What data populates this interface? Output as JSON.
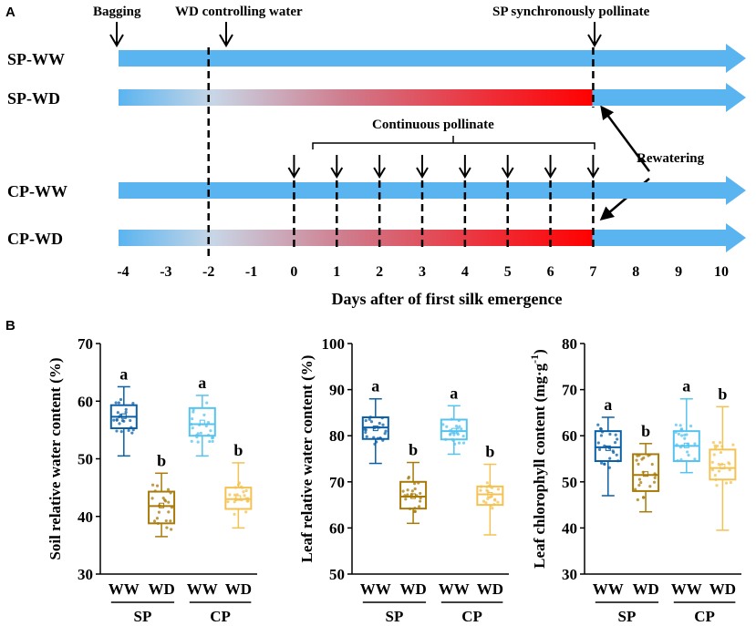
{
  "panel_a": {
    "label": "A",
    "rows": [
      {
        "name": "SP-WW",
        "deficit": false
      },
      {
        "name": "SP-WD",
        "deficit": true
      },
      {
        "name": "CP-WW",
        "deficit": false
      },
      {
        "name": "CP-WD",
        "deficit": true
      }
    ],
    "annotations": {
      "bagging": "Bagging",
      "wd_control": "WD controlling water",
      "sp_pollinate": "SP synchronously pollinate",
      "continuous": "Continuous pollinate",
      "rewatering": "Rewatering"
    },
    "timeline": {
      "day_min": -4,
      "day_max": 10,
      "ticks": [
        "-4",
        "-3",
        "-2",
        "-1",
        "0",
        "1",
        "2",
        "3",
        "4",
        "5",
        "6",
        "7",
        "8",
        "9",
        "10"
      ],
      "bagging_day": -4,
      "wd_start_day": -2,
      "wd_end_day": 7,
      "sp_pollinate_day": 7,
      "cp_pollinate_days": [
        0,
        1,
        2,
        3,
        4,
        5,
        6,
        7
      ],
      "xlabel": "Days after of first silk emergence"
    },
    "colors": {
      "arrow": "#5ab4f0",
      "deficit": "#ff0000",
      "text": "#000000"
    }
  },
  "panel_b": {
    "label": "B",
    "groups": {
      "left": "SP",
      "right": "CP"
    },
    "box_colors": [
      "#0a5fa5",
      "#a77a0a",
      "#55c3ef",
      "#f3c252"
    ]
  },
  "chart_data": [
    {
      "type": "box",
      "title": "",
      "ylabel": "Soil relative water content (%)",
      "ylim": [
        30,
        70
      ],
      "yticks": [
        30,
        40,
        50,
        60,
        70
      ],
      "categories": [
        "WW",
        "WD",
        "WW",
        "WD"
      ],
      "letters": [
        "a",
        "b",
        "a",
        "b"
      ],
      "boxes": [
        {
          "min": 50.5,
          "q1": 55.3,
          "median": 57.3,
          "mean": 57.4,
          "q3": 59.3,
          "max": 62.5
        },
        {
          "min": 36.5,
          "q1": 38.8,
          "median": 41.8,
          "mean": 41.9,
          "q3": 44.3,
          "max": 47.5
        },
        {
          "min": 50.5,
          "q1": 54.0,
          "median": 56.0,
          "mean": 56.3,
          "q3": 58.8,
          "max": 61.0
        },
        {
          "min": 38.0,
          "q1": 41.3,
          "median": 43.0,
          "mean": 43.2,
          "q3": 45.0,
          "max": 49.3
        }
      ]
    },
    {
      "type": "box",
      "title": "",
      "ylabel": "Leaf relative water content (%)",
      "ylim": [
        50,
        100
      ],
      "yticks": [
        50,
        60,
        70,
        80,
        90,
        100
      ],
      "categories": [
        "WW",
        "WD",
        "WW",
        "WD"
      ],
      "letters": [
        "a",
        "b",
        "a",
        "b"
      ],
      "boxes": [
        {
          "min": 74.0,
          "q1": 79.3,
          "median": 81.8,
          "mean": 81.6,
          "q3": 84.0,
          "max": 88.0
        },
        {
          "min": 61.0,
          "q1": 64.2,
          "median": 66.8,
          "mean": 66.9,
          "q3": 70.0,
          "max": 74.2
        },
        {
          "min": 76.0,
          "q1": 79.2,
          "median": 81.0,
          "mean": 81.1,
          "q3": 83.5,
          "max": 86.5
        },
        {
          "min": 58.5,
          "q1": 65.0,
          "median": 67.3,
          "mean": 67.2,
          "q3": 69.0,
          "max": 73.8
        }
      ]
    },
    {
      "type": "box",
      "title": "",
      "ylabel": "Leaf chlorophyll content (mg·g",
      "ylabel_sup": "-1",
      "ylabel_close": ")",
      "ylim": [
        30,
        80
      ],
      "yticks": [
        30,
        40,
        50,
        60,
        70,
        80
      ],
      "categories": [
        "WW",
        "WD",
        "WW",
        "WD"
      ],
      "letters": [
        "a",
        "b",
        "a",
        "b"
      ],
      "boxes": [
        {
          "min": 47.0,
          "q1": 54.5,
          "median": 57.5,
          "mean": 57.3,
          "q3": 61.0,
          "max": 64.0
        },
        {
          "min": 43.5,
          "q1": 48.0,
          "median": 51.5,
          "mean": 51.7,
          "q3": 56.0,
          "max": 58.3
        },
        {
          "min": 52.0,
          "q1": 54.5,
          "median": 57.8,
          "mean": 57.9,
          "q3": 61.0,
          "max": 68.0
        },
        {
          "min": 39.5,
          "q1": 50.5,
          "median": 53.0,
          "mean": 53.3,
          "q3": 57.0,
          "max": 66.3
        }
      ]
    }
  ]
}
